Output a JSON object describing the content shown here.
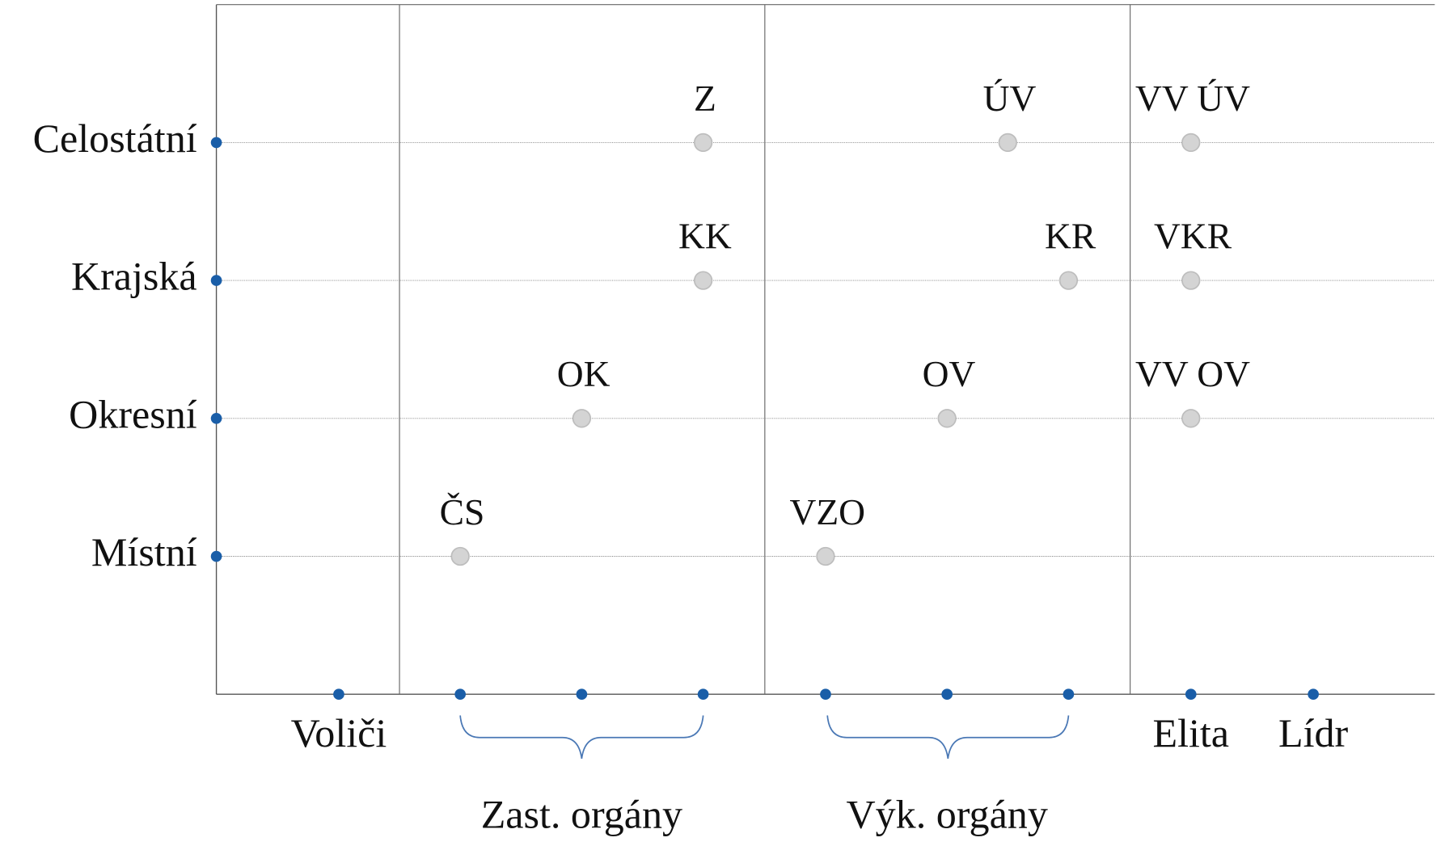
{
  "rows": [
    "Celostátní",
    "Krajská",
    "Okresní",
    "Místní"
  ],
  "columns": [
    "Voliči",
    "Elita",
    "Lídr"
  ],
  "groups": [
    "Zast. orgány",
    "Výk. orgány"
  ],
  "nodes": [
    {
      "label": "Z"
    },
    {
      "label": "ÚV"
    },
    {
      "label": "VV ÚV"
    },
    {
      "label": "KK"
    },
    {
      "label": "KR"
    },
    {
      "label": "VKR"
    },
    {
      "label": "OK"
    },
    {
      "label": "OV"
    },
    {
      "label": "VV OV"
    },
    {
      "label": "ČS"
    },
    {
      "label": "VZO"
    }
  ]
}
